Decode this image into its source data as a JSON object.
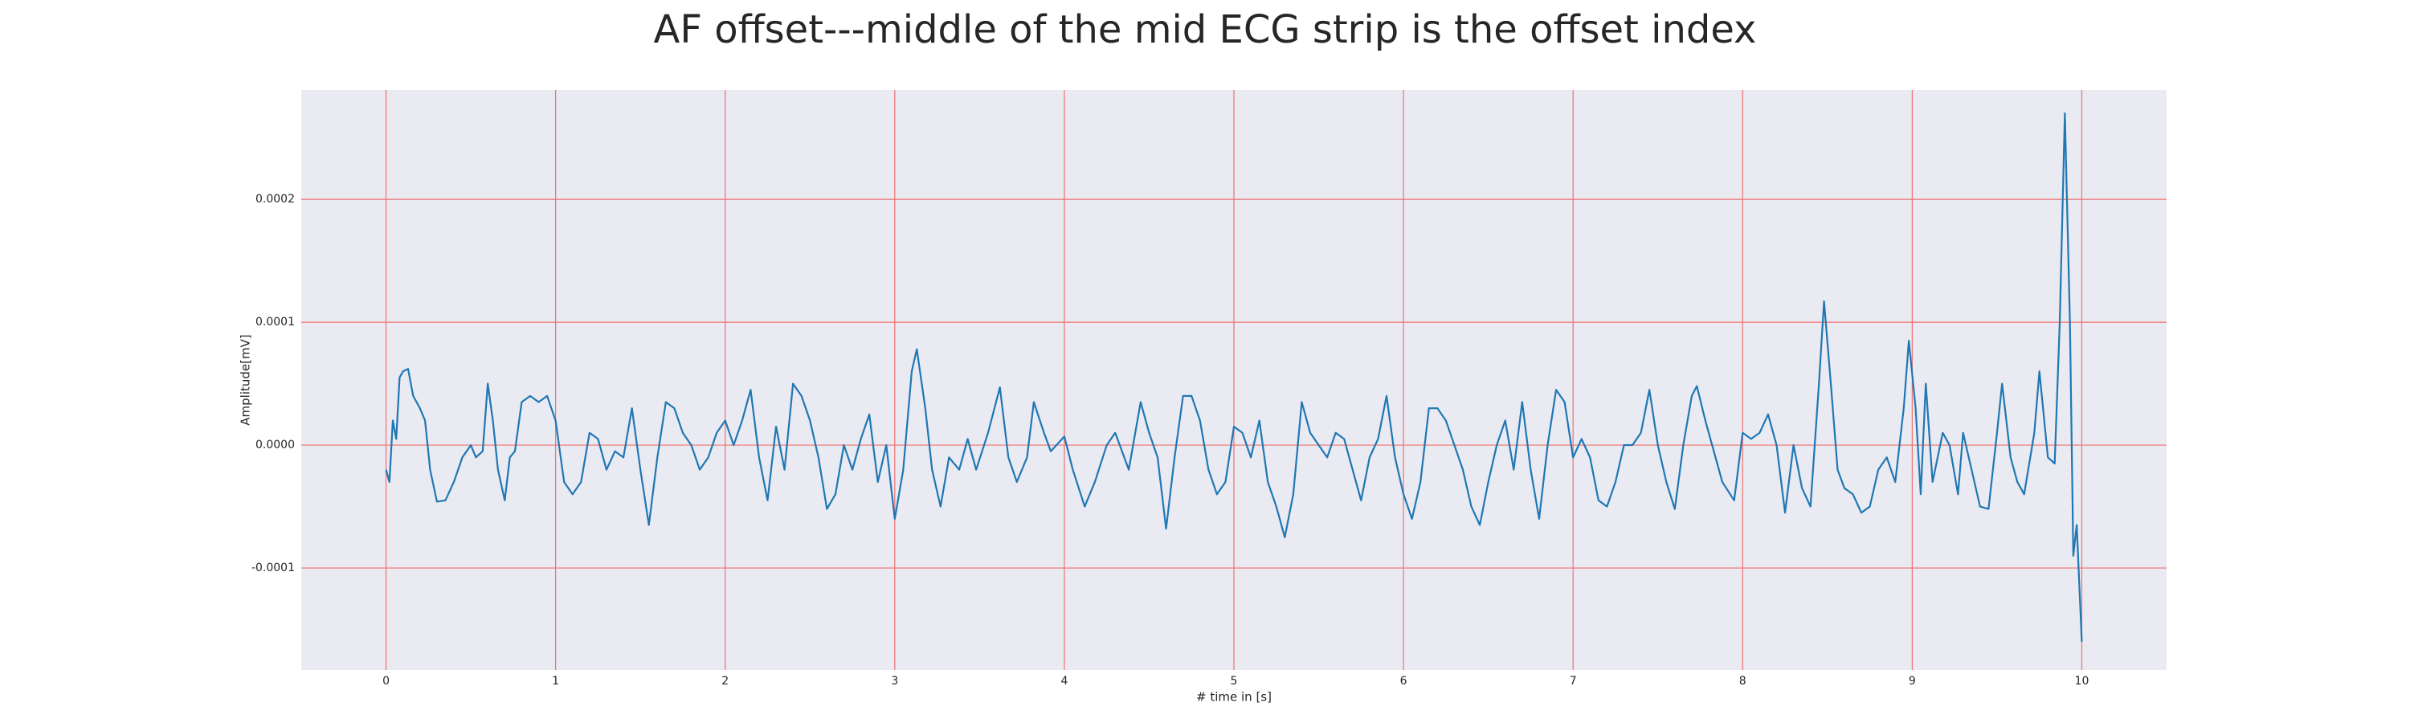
{
  "chart_data": {
    "type": "line",
    "title": "AF offset---middle of the mid ECG strip is the offset index",
    "xlabel": "# time in [s]",
    "ylabel": "Amplitude[mV]",
    "color": "#1f77b4",
    "grid": true,
    "grid_color": "#f07070",
    "background": "#eaeaf2",
    "xlim": [
      -0.5,
      10.5
    ],
    "ylim": [
      -0.000183,
      0.000289
    ],
    "xticks": [
      0,
      1,
      2,
      3,
      4,
      5,
      6,
      7,
      8,
      9,
      10
    ],
    "yticks": [
      -0.0001,
      {
        "value": 0,
        "label": "0.0000"
      },
      0.0001,
      0.0002
    ],
    "x": [
      0,
      0.02,
      0.04,
      0.06,
      0.08,
      0.1,
      0.13,
      0.16,
      0.2,
      0.23,
      0.26,
      0.3,
      0.35,
      0.4,
      0.45,
      0.5,
      0.53,
      0.57,
      0.6,
      0.63,
      0.66,
      0.7,
      0.73,
      0.76,
      0.8,
      0.85,
      0.9,
      0.95,
      1.0,
      1.05,
      1.1,
      1.15,
      1.2,
      1.25,
      1.3,
      1.35,
      1.4,
      1.45,
      1.5,
      1.55,
      1.6,
      1.65,
      1.7,
      1.75,
      1.8,
      1.85,
      1.9,
      1.95,
      2.0,
      2.05,
      2.1,
      2.15,
      2.2,
      2.25,
      2.3,
      2.35,
      2.4,
      2.45,
      2.5,
      2.55,
      2.6,
      2.65,
      2.7,
      2.75,
      2.8,
      2.85,
      2.9,
      2.95,
      3.0,
      3.05,
      3.1,
      3.13,
      3.18,
      3.22,
      3.27,
      3.32,
      3.38,
      3.43,
      3.48,
      3.55,
      3.62,
      3.67,
      3.72,
      3.78,
      3.82,
      3.88,
      3.92,
      4.0,
      4.05,
      4.12,
      4.18,
      4.25,
      4.3,
      4.38,
      4.45,
      4.5,
      4.55,
      4.6,
      4.65,
      4.7,
      4.75,
      4.8,
      4.85,
      4.9,
      4.95,
      5.0,
      5.05,
      5.1,
      5.15,
      5.2,
      5.25,
      5.3,
      5.35,
      5.4,
      5.45,
      5.5,
      5.55,
      5.6,
      5.65,
      5.7,
      5.75,
      5.8,
      5.85,
      5.9,
      5.95,
      6.0,
      6.05,
      6.1,
      6.15,
      6.2,
      6.25,
      6.3,
      6.35,
      6.4,
      6.45,
      6.5,
      6.55,
      6.6,
      6.65,
      6.7,
      6.75,
      6.8,
      6.85,
      6.9,
      6.95,
      7.0,
      7.05,
      7.1,
      7.15,
      7.2,
      7.25,
      7.3,
      7.35,
      7.4,
      7.45,
      7.5,
      7.55,
      7.6,
      7.65,
      7.7,
      7.73,
      7.78,
      7.83,
      7.88,
      7.95,
      8.0,
      8.05,
      8.1,
      8.15,
      8.2,
      8.25,
      8.3,
      8.35,
      8.4,
      8.45,
      8.48,
      8.52,
      8.56,
      8.6,
      8.65,
      8.7,
      8.75,
      8.8,
      8.85,
      8.9,
      8.95,
      8.98,
      9.02,
      9.05,
      9.08,
      9.12,
      9.18,
      9.22,
      9.27,
      9.3,
      9.35,
      9.4,
      9.45,
      9.5,
      9.53,
      9.58,
      9.62,
      9.66,
      9.72,
      9.75,
      9.8,
      9.84,
      9.87,
      9.9,
      9.93,
      9.95,
      9.97,
      10.0
    ],
    "values": [
      -2e-05,
      -3e-05,
      2e-05,
      5e-06,
      5.5e-05,
      6e-05,
      6.2e-05,
      4e-05,
      3e-05,
      2e-05,
      -2e-05,
      -4.6e-05,
      -4.5e-05,
      -3e-05,
      -1e-05,
      0,
      -1e-05,
      -5e-06,
      5e-05,
      2e-05,
      -2e-05,
      -4.5e-05,
      -1e-05,
      -5e-06,
      3.5e-05,
      4e-05,
      3.5e-05,
      4e-05,
      2e-05,
      -3e-05,
      -4e-05,
      -3e-05,
      1e-05,
      5e-06,
      -2e-05,
      -5e-06,
      -1e-05,
      3e-05,
      -2e-05,
      -6.5e-05,
      -1e-05,
      3.5e-05,
      3e-05,
      1e-05,
      0,
      -2e-05,
      -1e-05,
      1e-05,
      2e-05,
      0,
      2e-05,
      4.5e-05,
      -1e-05,
      -4.5e-05,
      1.5e-05,
      -2e-05,
      5e-05,
      4e-05,
      2e-05,
      -1e-05,
      -5.2e-05,
      -4e-05,
      0,
      -2e-05,
      5e-06,
      2.5e-05,
      -3e-05,
      0,
      -6e-05,
      -2e-05,
      6e-05,
      7.8e-05,
      3e-05,
      -2e-05,
      -5e-05,
      -1e-05,
      -2e-05,
      5e-06,
      -2e-05,
      1e-05,
      4.7e-05,
      -1e-05,
      -3e-05,
      -1e-05,
      3.5e-05,
      1e-05,
      -5e-06,
      7e-06,
      -2e-05,
      -5e-05,
      -3e-05,
      0,
      1e-05,
      -2e-05,
      3.5e-05,
      1e-05,
      -1e-05,
      -6.8e-05,
      -1e-05,
      4e-05,
      4e-05,
      2e-05,
      -2e-05,
      -4e-05,
      -3e-05,
      1.5e-05,
      1e-05,
      -1e-05,
      2e-05,
      -3e-05,
      -5e-05,
      -7.5e-05,
      -4e-05,
      3.5e-05,
      1e-05,
      0,
      -1e-05,
      1e-05,
      5e-06,
      -2e-05,
      -4.5e-05,
      -1e-05,
      5e-06,
      4e-05,
      -1e-05,
      -4e-05,
      -6e-05,
      -3e-05,
      3e-05,
      3e-05,
      2e-05,
      0,
      -2e-05,
      -5e-05,
      -6.5e-05,
      -3e-05,
      0,
      2e-05,
      -2e-05,
      3.5e-05,
      -2e-05,
      -6e-05,
      0,
      4.5e-05,
      3.5e-05,
      -1e-05,
      5e-06,
      -1e-05,
      -4.5e-05,
      -5e-05,
      -3e-05,
      0,
      0,
      1e-05,
      4.5e-05,
      0,
      -3e-05,
      -5.2e-05,
      0,
      4e-05,
      4.8e-05,
      2e-05,
      -5e-06,
      -3e-05,
      -4.5e-05,
      1e-05,
      5e-06,
      1e-05,
      2.5e-05,
      0,
      -5.5e-05,
      0,
      -3.5e-05,
      -5e-05,
      5e-05,
      0.000117,
      5e-05,
      -2e-05,
      -3.5e-05,
      -4e-05,
      -5.5e-05,
      -5e-05,
      -2e-05,
      -1e-05,
      -3e-05,
      3e-05,
      8.5e-05,
      3e-05,
      -4e-05,
      5e-05,
      -3e-05,
      1e-05,
      0,
      -4e-05,
      1e-05,
      -2e-05,
      -5e-05,
      -5.2e-05,
      1e-05,
      5e-05,
      -1e-05,
      -3e-05,
      -4e-05,
      1e-05,
      6e-05,
      -1e-05,
      -1.5e-05,
      0.0001,
      0.00027,
      0.0001,
      -9e-05,
      -6.5e-05,
      -0.00016
    ]
  }
}
